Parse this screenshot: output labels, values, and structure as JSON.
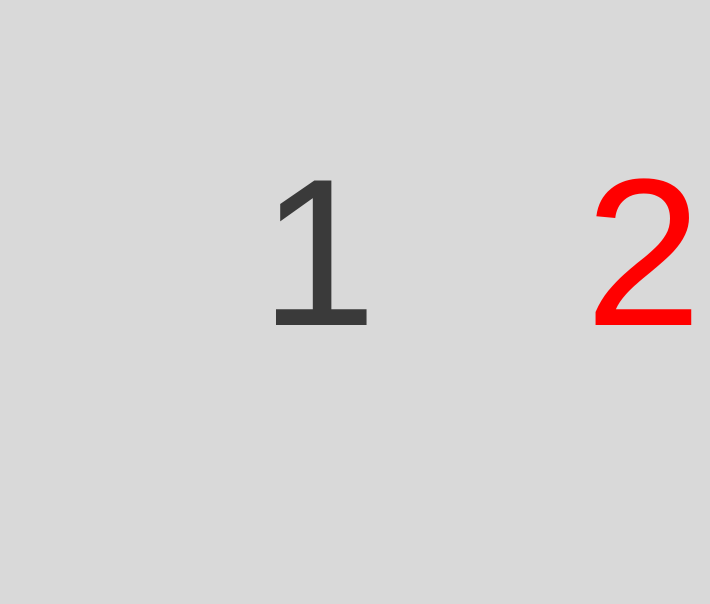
{
  "pager": {
    "pages": [
      {
        "label": "1",
        "state": "inactive"
      },
      {
        "label": "2",
        "state": "active"
      }
    ]
  },
  "colors": {
    "background": "#d9d9d9",
    "inactive_text": "#3a3a3a",
    "active_text": "#ff0000"
  }
}
